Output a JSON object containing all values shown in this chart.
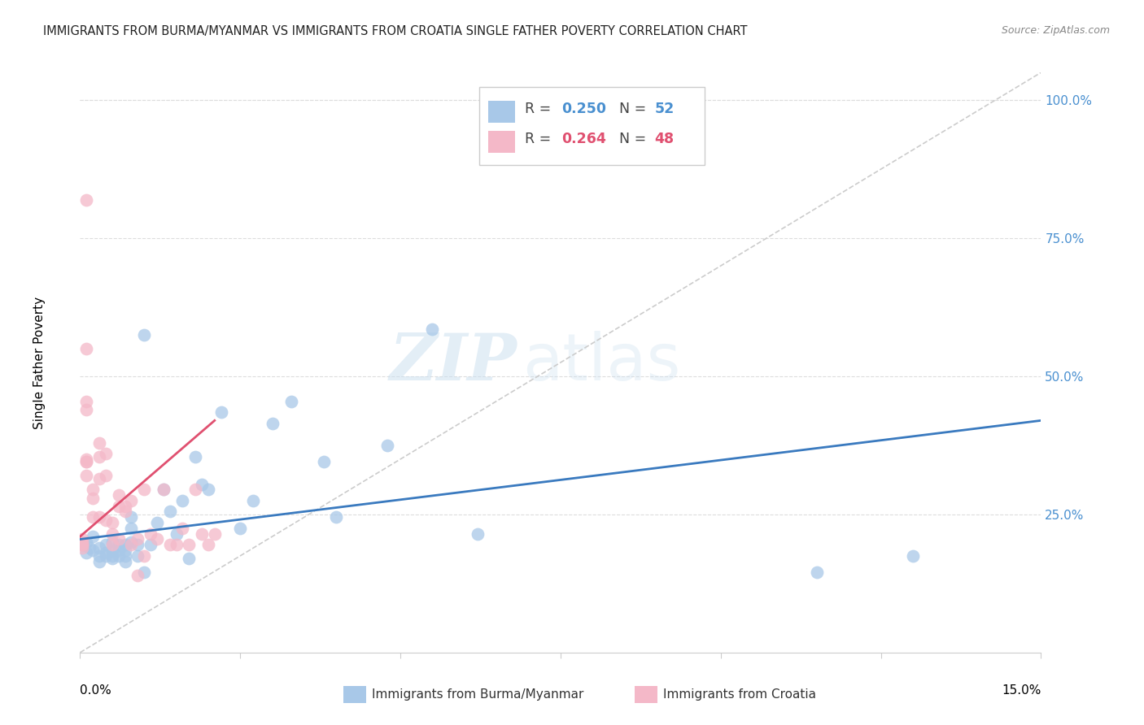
{
  "title": "IMMIGRANTS FROM BURMA/MYANMAR VS IMMIGRANTS FROM CROATIA SINGLE FATHER POVERTY CORRELATION CHART",
  "source": "Source: ZipAtlas.com",
  "ylabel": "Single Father Poverty",
  "legend_blue_r": "0.250",
  "legend_blue_n": "52",
  "legend_pink_r": "0.264",
  "legend_pink_n": "48",
  "blue_color": "#a8c8e8",
  "pink_color": "#f4b8c8",
  "blue_line_color": "#3a7abf",
  "pink_line_color": "#e05070",
  "diagonal_color": "#cccccc",
  "watermark_zip": "ZIP",
  "watermark_atlas": "atlas",
  "blue_scatter_x": [
    0.0005,
    0.001,
    0.001,
    0.0015,
    0.002,
    0.002,
    0.003,
    0.003,
    0.003,
    0.004,
    0.004,
    0.004,
    0.005,
    0.005,
    0.005,
    0.005,
    0.006,
    0.006,
    0.006,
    0.007,
    0.007,
    0.007,
    0.007,
    0.008,
    0.008,
    0.008,
    0.009,
    0.009,
    0.01,
    0.01,
    0.011,
    0.012,
    0.013,
    0.014,
    0.015,
    0.016,
    0.017,
    0.018,
    0.019,
    0.02,
    0.022,
    0.025,
    0.027,
    0.03,
    0.033,
    0.038,
    0.04,
    0.048,
    0.055,
    0.062,
    0.115,
    0.13
  ],
  "blue_scatter_y": [
    0.195,
    0.18,
    0.2,
    0.19,
    0.21,
    0.185,
    0.175,
    0.19,
    0.165,
    0.18,
    0.195,
    0.175,
    0.2,
    0.175,
    0.185,
    0.17,
    0.195,
    0.175,
    0.185,
    0.165,
    0.185,
    0.195,
    0.175,
    0.245,
    0.225,
    0.2,
    0.195,
    0.175,
    0.575,
    0.145,
    0.195,
    0.235,
    0.295,
    0.255,
    0.215,
    0.275,
    0.17,
    0.355,
    0.305,
    0.295,
    0.435,
    0.225,
    0.275,
    0.415,
    0.455,
    0.345,
    0.245,
    0.375,
    0.585,
    0.215,
    0.145,
    0.175
  ],
  "pink_scatter_x": [
    0.0003,
    0.0003,
    0.0003,
    0.0003,
    0.0003,
    0.001,
    0.001,
    0.001,
    0.001,
    0.002,
    0.002,
    0.002,
    0.003,
    0.003,
    0.003,
    0.003,
    0.004,
    0.004,
    0.004,
    0.005,
    0.005,
    0.005,
    0.006,
    0.006,
    0.006,
    0.007,
    0.007,
    0.008,
    0.008,
    0.009,
    0.009,
    0.01,
    0.01,
    0.011,
    0.012,
    0.013,
    0.014,
    0.015,
    0.016,
    0.017,
    0.018,
    0.019,
    0.02,
    0.021,
    0.001,
    0.001,
    0.001,
    0.001
  ],
  "pink_scatter_y": [
    0.205,
    0.2,
    0.195,
    0.195,
    0.19,
    0.32,
    0.345,
    0.345,
    0.35,
    0.28,
    0.295,
    0.245,
    0.355,
    0.38,
    0.245,
    0.315,
    0.36,
    0.32,
    0.24,
    0.215,
    0.235,
    0.195,
    0.265,
    0.285,
    0.205,
    0.255,
    0.265,
    0.275,
    0.195,
    0.205,
    0.14,
    0.295,
    0.175,
    0.215,
    0.205,
    0.295,
    0.195,
    0.195,
    0.225,
    0.195,
    0.295,
    0.215,
    0.195,
    0.215,
    0.82,
    0.455,
    0.44,
    0.55
  ],
  "xlim": [
    0.0,
    0.15
  ],
  "ylim": [
    0.0,
    1.05
  ],
  "blue_line_x0": 0.0,
  "blue_line_x1": 0.15,
  "blue_line_y0": 0.205,
  "blue_line_y1": 0.42,
  "pink_line_x0": 0.0,
  "pink_line_x1": 0.021,
  "pink_line_y0": 0.21,
  "pink_line_y1": 0.42
}
